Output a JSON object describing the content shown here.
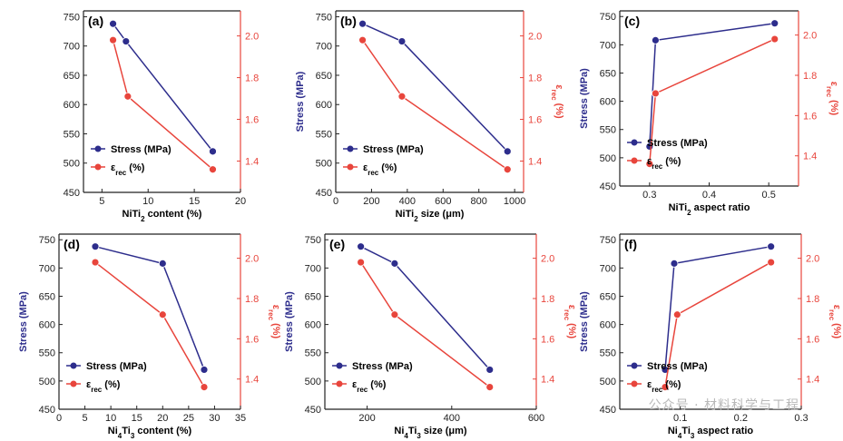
{
  "colors": {
    "stress": "#2d2d8c",
    "strain": "#e8453c",
    "axis": "#222222"
  },
  "legend": {
    "stress": "Stress (MPa)",
    "strain_symbol": "ε",
    "strain_sub": "rec",
    "strain_unit": " (%)"
  },
  "watermark": "公众号 · 材料科学与工程",
  "chart_data": [
    {
      "type": "line",
      "panel": "(a)",
      "xlabel": [
        {
          "t": "NiTi"
        },
        {
          "t": "2",
          "sub": true
        },
        {
          "t": " content (%)"
        }
      ],
      "ylabel_left": "",
      "ylabel_right": [],
      "xlim": [
        3,
        20
      ],
      "xticks": [
        5,
        10,
        15,
        20
      ],
      "ylim": [
        450,
        760
      ],
      "yticks": [
        450,
        500,
        550,
        600,
        650,
        700,
        750
      ],
      "y2lim": [
        1.25,
        2.12
      ],
      "y2ticks": [
        1.4,
        1.6,
        1.8,
        2.0
      ],
      "series": [
        {
          "name": "Stress (MPa)",
          "axis": "left",
          "x": [
            6.2,
            7.6,
            17.0
          ],
          "values": [
            738,
            708,
            520
          ]
        },
        {
          "name": "ε_rec (%)",
          "axis": "right",
          "x": [
            6.2,
            7.8,
            17.0
          ],
          "values": [
            1.98,
            1.71,
            1.36
          ]
        }
      ]
    },
    {
      "type": "line",
      "panel": "(b)",
      "xlabel": [
        {
          "t": "NiTi"
        },
        {
          "t": "2",
          "sub": true
        },
        {
          "t": " size (μm)"
        }
      ],
      "ylabel_left": "Stress (MPa)",
      "ylabel_right": [
        {
          "t": "ε"
        },
        {
          "t": "rec",
          "sub": true
        },
        {
          "t": " (%)"
        }
      ],
      "xlim": [
        0,
        1050
      ],
      "xticks": [
        0,
        200,
        400,
        600,
        800,
        1000
      ],
      "ylim": [
        450,
        760
      ],
      "yticks": [
        450,
        500,
        550,
        600,
        650,
        700,
        750
      ],
      "y2lim": [
        1.25,
        2.12
      ],
      "y2ticks": [
        1.4,
        1.6,
        1.8,
        2.0
      ],
      "series": [
        {
          "name": "Stress (MPa)",
          "axis": "left",
          "x": [
            150,
            370,
            960
          ],
          "values": [
            738,
            708,
            520
          ]
        },
        {
          "name": "ε_rec (%)",
          "axis": "right",
          "x": [
            150,
            370,
            960
          ],
          "values": [
            1.98,
            1.71,
            1.36
          ]
        }
      ]
    },
    {
      "type": "line",
      "panel": "(c)",
      "xlabel": [
        {
          "t": "NiTi"
        },
        {
          "t": "2",
          "sub": true
        },
        {
          "t": " aspect ratio"
        }
      ],
      "ylabel_left": "Stress (MPa)",
      "ylabel_right": [
        {
          "t": "ε"
        },
        {
          "t": "rec",
          "sub": true
        },
        {
          "t": " (%)"
        }
      ],
      "xlim": [
        0.25,
        0.55
      ],
      "xticks": [
        0.3,
        0.4,
        0.5
      ],
      "ylim": [
        450,
        760
      ],
      "yticks": [
        450,
        500,
        550,
        600,
        650,
        700,
        750
      ],
      "y2lim": [
        1.25,
        2.12
      ],
      "y2ticks": [
        1.4,
        1.6,
        1.8,
        2.0
      ],
      "series": [
        {
          "name": "Stress (MPa)",
          "axis": "left",
          "x": [
            0.3,
            0.31,
            0.51
          ],
          "values": [
            520,
            708,
            738
          ]
        },
        {
          "name": "ε_rec (%)",
          "axis": "right",
          "x": [
            0.3,
            0.31,
            0.51
          ],
          "values": [
            1.36,
            1.71,
            1.98
          ]
        }
      ]
    },
    {
      "type": "line",
      "panel": "(d)",
      "xlabel": [
        {
          "t": "Ni"
        },
        {
          "t": "4",
          "sub": true
        },
        {
          "t": "Ti"
        },
        {
          "t": "3",
          "sub": true
        },
        {
          "t": " content (%)"
        }
      ],
      "ylabel_left": "Stress (MPa)",
      "ylabel_right": [
        {
          "t": "ε"
        },
        {
          "t": "rec",
          "sub": true
        },
        {
          "t": " (%)"
        }
      ],
      "xlim": [
        0,
        35
      ],
      "xticks": [
        0,
        5,
        10,
        15,
        20,
        25,
        30,
        35
      ],
      "ylim": [
        450,
        760
      ],
      "yticks": [
        450,
        500,
        550,
        600,
        650,
        700,
        750
      ],
      "y2lim": [
        1.25,
        2.12
      ],
      "y2ticks": [
        1.4,
        1.6,
        1.8,
        2.0
      ],
      "series": [
        {
          "name": "Stress (MPa)",
          "axis": "left",
          "x": [
            7.0,
            20.0,
            28.0
          ],
          "values": [
            738,
            708,
            520
          ]
        },
        {
          "name": "ε_rec (%)",
          "axis": "right",
          "x": [
            7.0,
            20.0,
            28.0
          ],
          "values": [
            1.98,
            1.72,
            1.36
          ]
        }
      ]
    },
    {
      "type": "line",
      "panel": "(e)",
      "xlabel": [
        {
          "t": "Ni"
        },
        {
          "t": "4",
          "sub": true
        },
        {
          "t": "Ti"
        },
        {
          "t": "3",
          "sub": true
        },
        {
          "t": " size (μm)"
        }
      ],
      "ylabel_left": "Stress (MPa)",
      "ylabel_right": [
        {
          "t": "ε"
        },
        {
          "t": "rec",
          "sub": true
        },
        {
          "t": " (%)"
        }
      ],
      "xlim": [
        100,
        600
      ],
      "xticks": [
        200,
        400,
        600
      ],
      "ylim": [
        450,
        760
      ],
      "yticks": [
        450,
        500,
        550,
        600,
        650,
        700,
        750
      ],
      "y2lim": [
        1.25,
        2.12
      ],
      "y2ticks": [
        1.4,
        1.6,
        1.8,
        2.0
      ],
      "series": [
        {
          "name": "Stress (MPa)",
          "axis": "left",
          "x": [
            185,
            265,
            490
          ],
          "values": [
            738,
            708,
            520
          ]
        },
        {
          "name": "ε_rec (%)",
          "axis": "right",
          "x": [
            185,
            265,
            490
          ],
          "values": [
            1.98,
            1.72,
            1.36
          ]
        }
      ]
    },
    {
      "type": "line",
      "panel": "(f)",
      "xlabel": [
        {
          "t": "Ni"
        },
        {
          "t": "4",
          "sub": true
        },
        {
          "t": "Ti"
        },
        {
          "t": "3",
          "sub": true
        },
        {
          "t": " aspect ratio"
        }
      ],
      "ylabel_left": "Stress (MPa)",
      "ylabel_right": [
        {
          "t": "ε"
        },
        {
          "t": "rec",
          "sub": true
        },
        {
          "t": " (%)"
        }
      ],
      "xlim": [
        0.0,
        0.3
      ],
      "xticks": [
        0.1,
        0.2,
        0.3
      ],
      "ylim": [
        450,
        760
      ],
      "yticks": [
        450,
        500,
        550,
        600,
        650,
        700,
        750
      ],
      "y2lim": [
        1.25,
        2.12
      ],
      "y2ticks": [
        1.4,
        1.6,
        1.8,
        2.0
      ],
      "series": [
        {
          "name": "Stress (MPa)",
          "axis": "left",
          "x": [
            0.075,
            0.09,
            0.25
          ],
          "values": [
            520,
            708,
            738
          ]
        },
        {
          "name": "ε_rec (%)",
          "axis": "right",
          "x": [
            0.075,
            0.095,
            0.25
          ],
          "values": [
            1.36,
            1.72,
            1.98
          ]
        }
      ]
    }
  ]
}
